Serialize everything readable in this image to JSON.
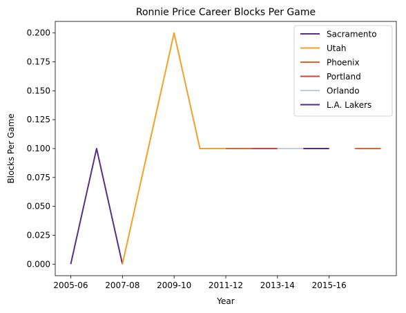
{
  "chart_data": {
    "type": "line",
    "title": "Ronnie Price Career Blocks Per Game",
    "xlabel": "Year",
    "ylabel": "Blocks Per Game",
    "x_tick_labels": [
      "2005-06",
      "2007-08",
      "2009-10",
      "2011-12",
      "2013-14",
      "2015-16"
    ],
    "y_ticks": [
      0.0,
      0.025,
      0.05,
      0.075,
      0.1,
      0.125,
      0.15,
      0.175,
      0.2
    ],
    "y_tick_labels": [
      "0.000",
      "0.025",
      "0.050",
      "0.075",
      "0.100",
      "0.125",
      "0.150",
      "0.175",
      "0.200"
    ],
    "ylim": [
      -0.01,
      0.21
    ],
    "grid": false,
    "legend_position": "top-right",
    "series": [
      {
        "name": "Sacramento",
        "color": "#5a2d82",
        "x": [
          "2005-06",
          "2006-07",
          "2007-08"
        ],
        "values": [
          0.0,
          0.1,
          0.0
        ]
      },
      {
        "name": "Utah",
        "color": "#f4a024",
        "x": [
          "2007-08",
          "2008-09",
          "2009-10",
          "2010-11",
          "2011-12"
        ],
        "values": [
          0.0,
          0.1,
          0.2,
          0.1,
          0.1
        ]
      },
      {
        "name": "Phoenix",
        "color": "#e5622a",
        "x": [
          "2011-12",
          "2012-13",
          "2016-17",
          "2017-18"
        ],
        "values": [
          0.1,
          0.1,
          0.1,
          0.1
        ]
      },
      {
        "name": "Portland",
        "color": "#e03a3e",
        "x": [
          "2012-13",
          "2013-14"
        ],
        "values": [
          0.1,
          0.1
        ]
      },
      {
        "name": "Orlando",
        "color": "#c4ced4",
        "x": [
          "2013-14",
          "2014-15"
        ],
        "values": [
          0.1,
          0.1
        ]
      },
      {
        "name": "L.A. Lakers",
        "color": "#552583",
        "x": [
          "2014-15",
          "2015-16"
        ],
        "values": [
          0.1,
          0.1
        ]
      }
    ],
    "x_order": [
      "2005-06",
      "2006-07",
      "2007-08",
      "2008-09",
      "2009-10",
      "2010-11",
      "2011-12",
      "2012-13",
      "2013-14",
      "2014-15",
      "2015-16",
      "2016-17",
      "2017-18"
    ]
  }
}
